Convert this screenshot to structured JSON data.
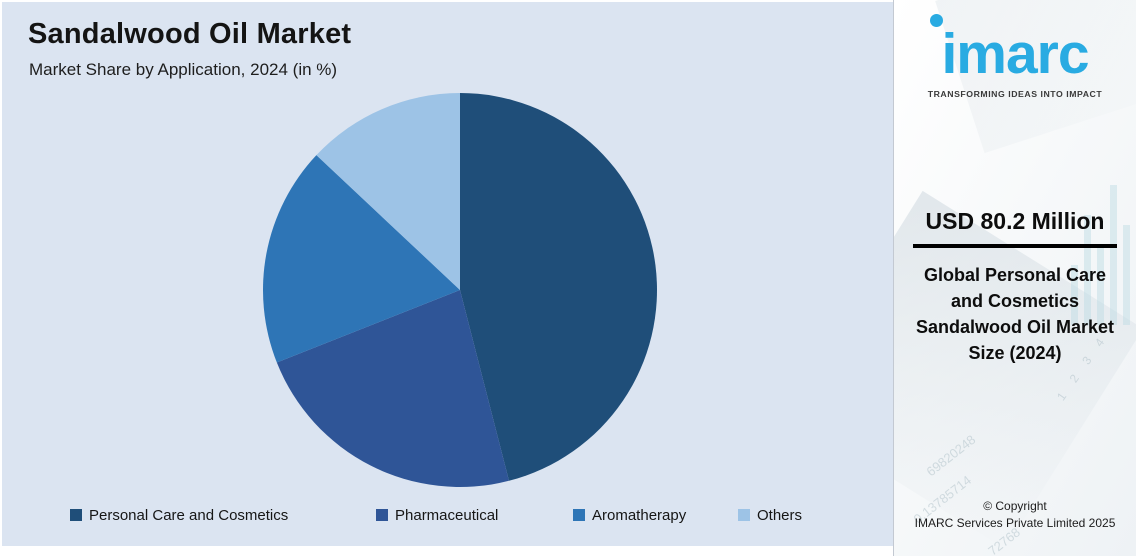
{
  "header": {
    "title": "Sandalwood Oil Market",
    "subtitle": "Market Share by Application, 2024 (in %)"
  },
  "chart_data": {
    "type": "pie",
    "title": "Sandalwood Oil Market",
    "subtitle": "Market Share by Application, 2024 (in %)",
    "categories": [
      "Personal Care and Cosmetics",
      "Pharmaceutical",
      "Aromatherapy",
      "Others"
    ],
    "values": [
      46,
      23,
      18,
      13
    ],
    "unit": "%",
    "colors": [
      "#1F4E79",
      "#2F5597",
      "#2E75B6",
      "#9DC3E6"
    ],
    "start_angle_deg": 0,
    "direction": "clockwise",
    "legend_position": "bottom",
    "data_labels": false,
    "background_color": "#DBE4F1"
  },
  "sidebar": {
    "logo_text": "imarc",
    "tagline": "TRANSFORMING IDEAS INTO IMPACT",
    "brand_color": "#29ABE2",
    "metric_value": "USD 80.2 Million",
    "metric_label": "Global Personal Care and Cosmetics Sandalwood Oil Market Size (2024)",
    "copyright_line1": "© Copyright",
    "copyright_line2": "IMARC Services Private Limited 2025",
    "watermarks": [
      "69820248",
      "0.13785714",
      "72768",
      "1 2 3 4"
    ]
  }
}
